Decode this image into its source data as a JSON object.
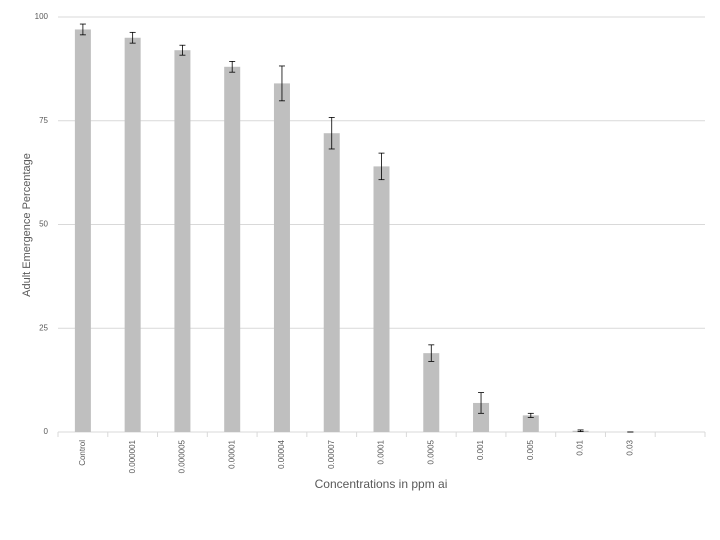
{
  "chart_data": {
    "type": "bar",
    "x_label": "Concentrations in ppm ai",
    "y_label": "Adult Emergence Percentage",
    "categories": [
      "Control",
      "0.000001",
      "0.000005",
      "0.00001",
      "0.00004",
      "0.00007",
      "0.0001",
      "0.0005",
      "0.001",
      "0.005",
      "0.01",
      "0.03",
      null
    ],
    "values": [
      97,
      95,
      92,
      88,
      84,
      72,
      64,
      19,
      7,
      4,
      0.3,
      0,
      null
    ],
    "errors": [
      1.3,
      1.3,
      1.2,
      1.3,
      4.2,
      3.8,
      3.2,
      2,
      2.5,
      0.5,
      0.2,
      0,
      null
    ],
    "color": "#bfbfbf",
    "ylim": [
      0,
      100
    ],
    "yticks": [
      0,
      25,
      50,
      75,
      100
    ],
    "grid": true
  }
}
